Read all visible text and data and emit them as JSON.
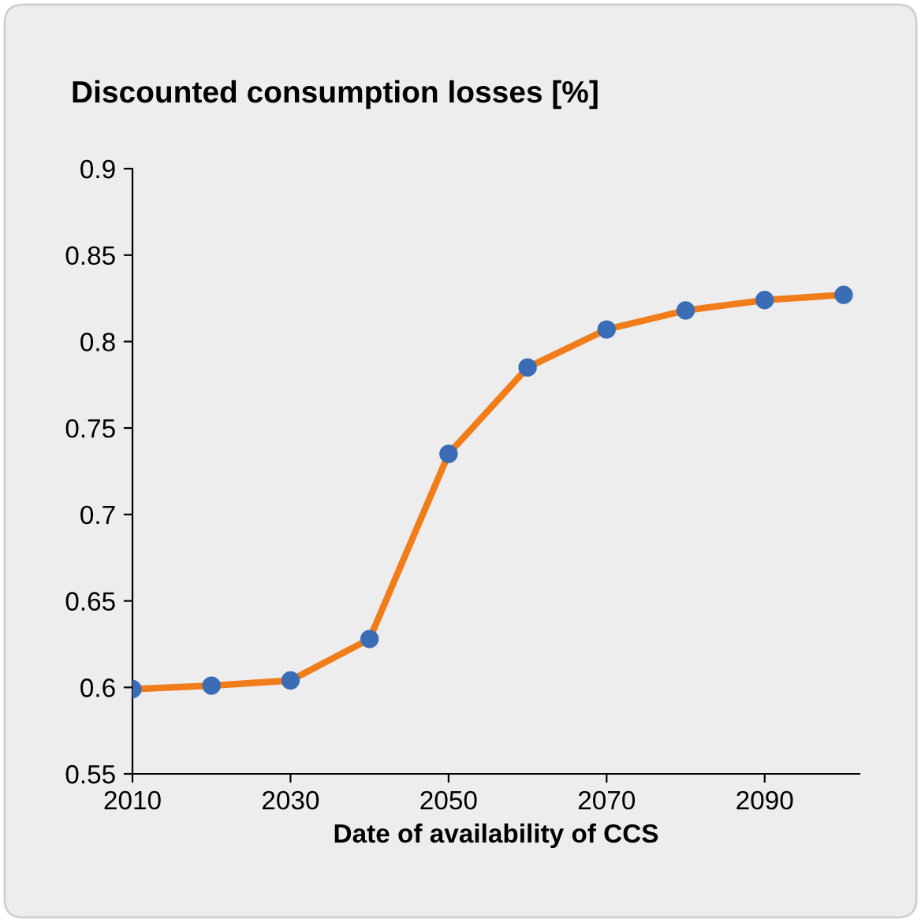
{
  "chart_data": {
    "type": "line",
    "title": "Discounted consumption losses [%]",
    "xlabel": "Date of availability of CCS",
    "x": [
      2010,
      2020,
      2030,
      2040,
      2050,
      2060,
      2070,
      2080,
      2090,
      2100
    ],
    "series": [
      {
        "color": "#f07d1a",
        "colors": [
          "#3a6db5",
          "#3a6db5",
          "#3a6db5",
          "#3a6db5",
          "#3a6db5",
          "#3a6db5",
          "#3a6db5",
          "#3a6db5",
          "#3a6db5",
          "#3a6db5"
        ],
        "values": [
          0.599,
          0.601,
          0.604,
          0.628,
          0.735,
          0.785,
          0.807,
          0.818,
          0.824,
          0.827
        ]
      }
    ],
    "marker": "circle",
    "line_style": "solid",
    "xlim": [
      2010,
      2102
    ],
    "xticks": [
      2010,
      2030,
      2050,
      2070,
      2090
    ],
    "ylim": [
      0.55,
      0.9
    ],
    "yticks": [
      0.55,
      0.6,
      0.65,
      0.7,
      0.75,
      0.8,
      0.85,
      0.9
    ],
    "grid": false,
    "legend": false
  }
}
